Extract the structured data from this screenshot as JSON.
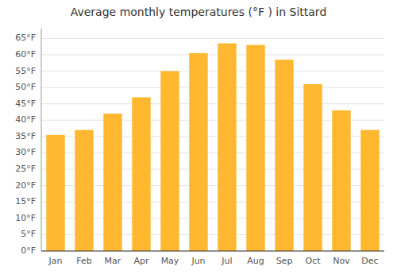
{
  "chart_data": {
    "type": "bar",
    "title": "Average monthly temperatures (°F ) in Sittard",
    "categories": [
      "Jan",
      "Feb",
      "Mar",
      "Apr",
      "May",
      "Jun",
      "Jul",
      "Aug",
      "Sep",
      "Oct",
      "Nov",
      "Dec"
    ],
    "values": [
      35.5,
      37.0,
      42.0,
      47.0,
      55.0,
      60.5,
      63.5,
      63.0,
      58.5,
      51.0,
      43.0,
      37.0
    ],
    "color": "#FFB830",
    "ylim": [
      0,
      68
    ],
    "yticks": [
      {
        "value": 0,
        "label": "0°F"
      },
      {
        "value": 5,
        "label": "5°F"
      },
      {
        "value": 10,
        "label": "10°F"
      },
      {
        "value": 15,
        "label": "15°F"
      },
      {
        "value": 20,
        "label": "20°F"
      },
      {
        "value": 25,
        "label": "25°F"
      },
      {
        "value": 30,
        "label": "30°F"
      },
      {
        "value": 35,
        "label": "35°F"
      },
      {
        "value": 40,
        "label": "40°F"
      },
      {
        "value": 45,
        "label": "45°F"
      },
      {
        "value": 50,
        "label": "50°F"
      },
      {
        "value": 55,
        "label": "55°F"
      },
      {
        "value": 60,
        "label": "60°F"
      },
      {
        "value": 65,
        "label": "65°F"
      }
    ],
    "grid": true
  }
}
